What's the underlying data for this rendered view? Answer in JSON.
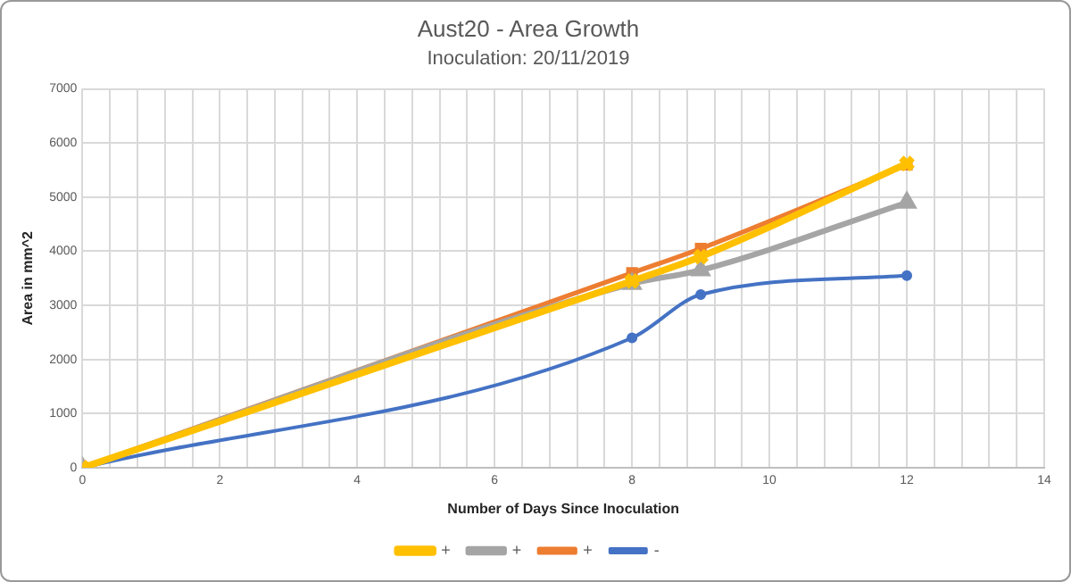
{
  "chart_data": {
    "type": "line",
    "title": "Aust20 - Area Growth",
    "subtitle": "Inoculation: 20/11/2019",
    "xlabel": "Number of Days Since Inoculation",
    "ylabel": "Area in mm^2",
    "x": [
      0,
      8,
      9,
      12
    ],
    "series": [
      {
        "name": "-",
        "color": "#4472c4",
        "values": [
          0,
          2400,
          3200,
          3550
        ],
        "marker": "circle"
      },
      {
        "name": "+",
        "color": "#ed7d31",
        "values": [
          0,
          3600,
          4050,
          5600
        ],
        "marker": "square"
      },
      {
        "name": "+",
        "color": "#a5a5a5",
        "values": [
          0,
          3400,
          3650,
          4900
        ],
        "marker": "triangle"
      },
      {
        "name": "+",
        "color": "#ffc000",
        "values": [
          0,
          3450,
          3900,
          5620
        ],
        "marker": "cross"
      }
    ],
    "xlim": [
      0,
      14
    ],
    "xticks": [
      0,
      {
        "value": 0.4,
        "label": null
      },
      {
        "value": 0.8,
        "label": null
      },
      {
        "value": 1.2,
        "label": null
      },
      {
        "value": 1.6,
        "label": null
      },
      2,
      {
        "value": 2.4,
        "label": null
      },
      {
        "value": 2.8,
        "label": null
      },
      {
        "value": 3.2,
        "label": null
      },
      {
        "value": 3.6,
        "label": null
      },
      4,
      {
        "value": 4.4,
        "label": null
      },
      {
        "value": 4.8,
        "label": null
      },
      {
        "value": 5.2,
        "label": null
      },
      {
        "value": 5.6,
        "label": null
      },
      6,
      {
        "value": 6.4,
        "label": null
      },
      {
        "value": 6.8,
        "label": null
      },
      {
        "value": 7.2,
        "label": null
      },
      {
        "value": 7.6,
        "label": null
      },
      8,
      {
        "value": 8.4,
        "label": null
      },
      {
        "value": 8.8,
        "label": null
      },
      {
        "value": 9.2,
        "label": null
      },
      {
        "value": 9.6,
        "label": null
      },
      10,
      {
        "value": 10.4,
        "label": null
      },
      {
        "value": 10.8,
        "label": null
      },
      {
        "value": 11.2,
        "label": null
      },
      {
        "value": 11.6,
        "label": null
      },
      12,
      {
        "value": 12.4,
        "label": null
      },
      {
        "value": 12.8,
        "label": null
      },
      {
        "value": 13.2,
        "label": null
      },
      {
        "value": 13.6,
        "label": null
      },
      14
    ],
    "ylim": [
      0,
      7000
    ],
    "yticks": [
      0,
      1000,
      2000,
      3000,
      4000,
      5000,
      6000,
      7000
    ],
    "grid": true,
    "legend": "bottom",
    "line_style": "solid"
  }
}
